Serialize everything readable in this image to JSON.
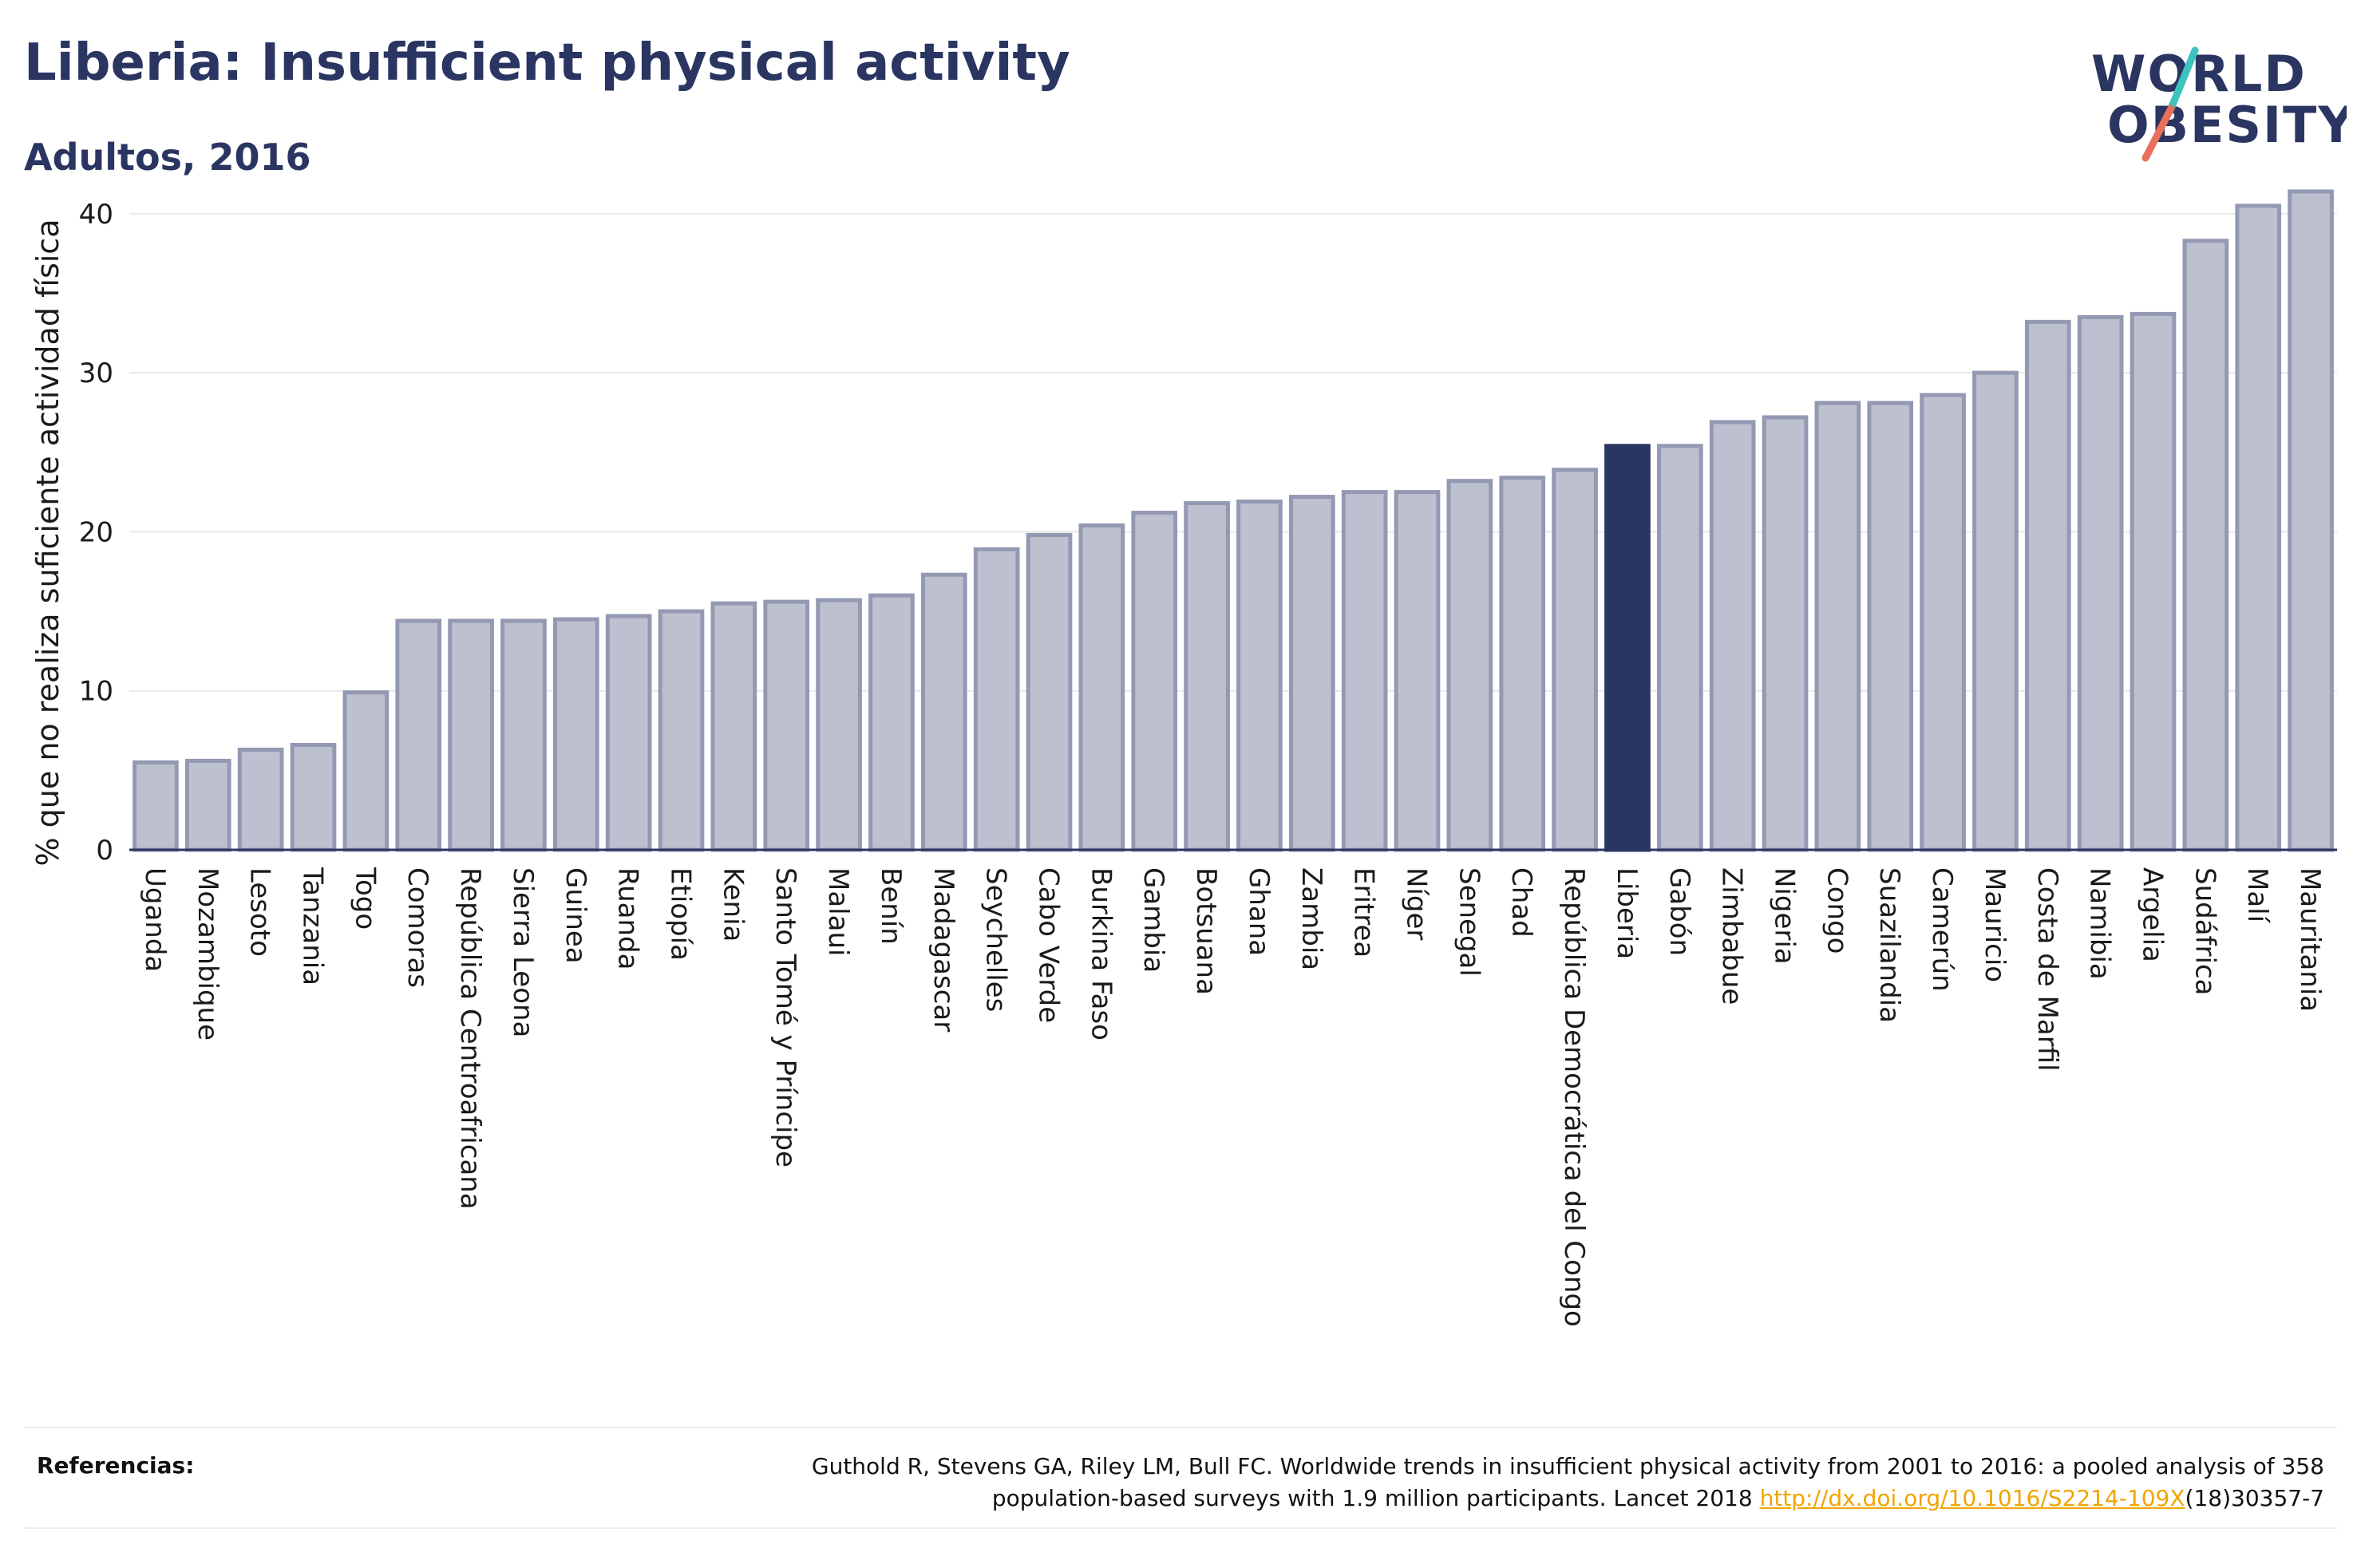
{
  "header": {
    "title": "Liberia: Insufficient physical activity",
    "subtitle": "Adultos, 2016"
  },
  "logo": {
    "line1": "WORLD",
    "line2": "OBESITY"
  },
  "colors": {
    "bar_fill": "#bcc0cf",
    "bar_stroke": "#9499b3",
    "highlight": "#2a3561",
    "grid": "#e8e8e8",
    "logo_text": "#2a3561",
    "logo_teal": "#3cc3bd",
    "logo_coral": "#e8705a",
    "link": "#f0a500"
  },
  "chart_data": {
    "type": "bar",
    "title": "Liberia: Insufficient physical activity",
    "subtitle": "Adultos, 2016",
    "xlabel": "",
    "ylabel": "% que no realiza suficiente actividad física",
    "ylim": [
      0,
      42
    ],
    "yticks": [
      0,
      10,
      20,
      30,
      40
    ],
    "grid": true,
    "highlight": "Liberia",
    "categories": [
      "Uganda",
      "Mozambique",
      "Lesoto",
      "Tanzania",
      "Togo",
      "Comoras",
      "República Centroafricana",
      "Sierra Leona",
      "Guinea",
      "Ruanda",
      "Etiopía",
      "Kenia",
      "Santo Tomé y Príncipe",
      "Malaui",
      "Benín",
      "Madagascar",
      "Seychelles",
      "Cabo Verde",
      "Burkina Faso",
      "Gambia",
      "Botsuana",
      "Ghana",
      "Zambia",
      "Eritrea",
      "Níger",
      "Senegal",
      "Chad",
      "República Democrática del Congo",
      "Liberia",
      "Gabón",
      "Zimbabue",
      "Nigeria",
      "Congo",
      "Suazilandia",
      "Camerún",
      "Mauricio",
      "Costa de Marfil",
      "Namibia",
      "Argelia",
      "Sudáfrica",
      "Malí",
      "Mauritania"
    ],
    "values": [
      5.5,
      5.6,
      6.3,
      6.6,
      9.9,
      14.4,
      14.4,
      14.4,
      14.5,
      14.7,
      15.0,
      15.5,
      15.6,
      15.7,
      16.0,
      17.3,
      18.9,
      19.8,
      20.4,
      21.2,
      21.8,
      21.9,
      22.2,
      22.5,
      22.5,
      23.2,
      23.4,
      23.9,
      25.4,
      25.4,
      26.9,
      27.2,
      28.1,
      28.1,
      28.6,
      30.0,
      33.2,
      33.5,
      33.7,
      38.3,
      40.5,
      41.4
    ]
  },
  "references": {
    "label": "Referencias:",
    "text_line1": "Guthold R, Stevens GA, Riley LM, Bull FC. Worldwide trends in insufficient physical activity from 2001 to 2016: a pooled analysis of 358",
    "text_line2_prefix": "population-based surveys with 1.9 million participants. Lancet 2018 ",
    "link_text": "http://dx.doi.org/10.1016/S2214-109X",
    "text_line2_suffix": "(18)30357-7"
  }
}
